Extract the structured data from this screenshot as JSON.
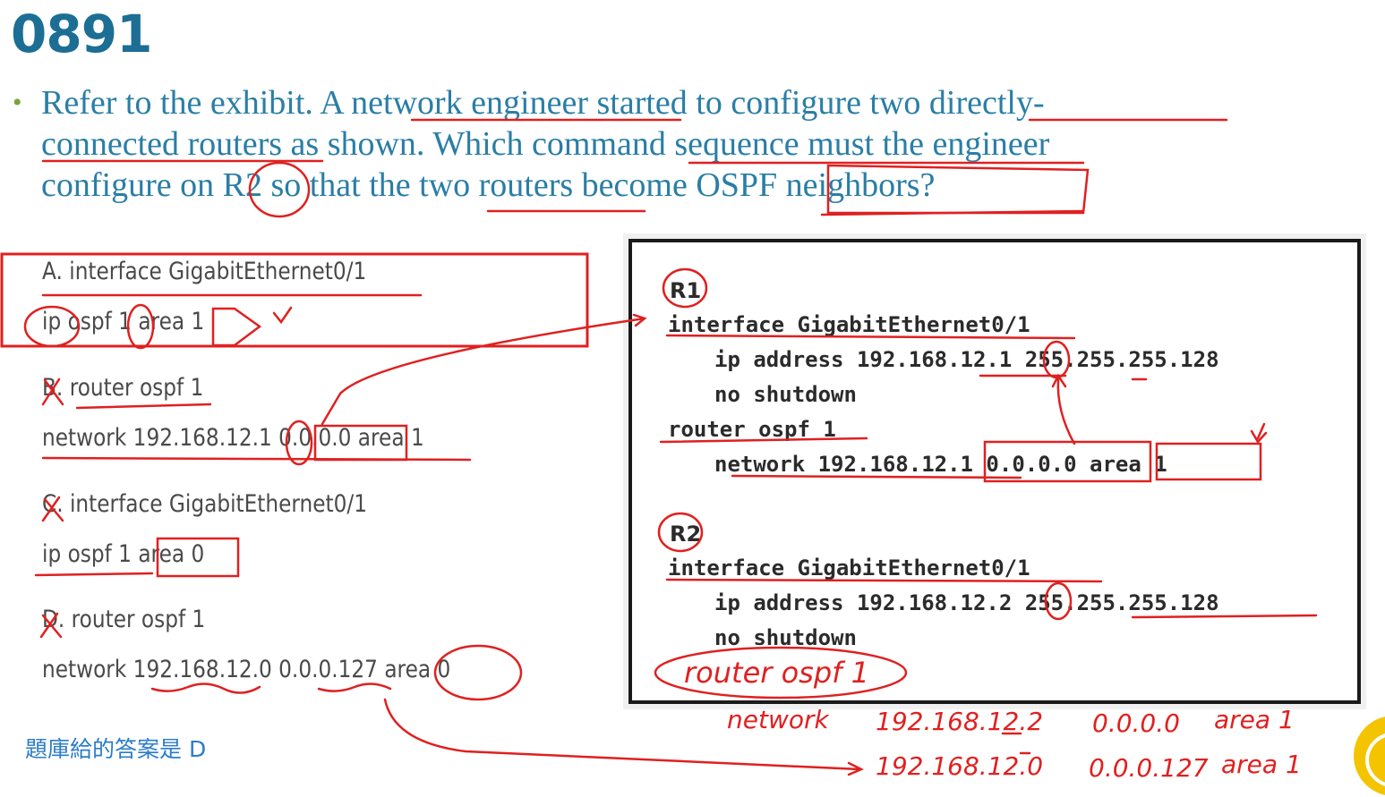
{
  "question": {
    "number": "0891",
    "lines": [
      "Refer to the exhibit. A network engineer started to configure two directly-",
      "connected routers as shown. Which command sequence must the engineer",
      "configure on R2 so that the two routers become OSPF neighbors?"
    ]
  },
  "options": [
    {
      "line1": "A. interface GigabitEthernet0/1",
      "line2": "ip ospf 1 area 1"
    },
    {
      "line1": "B. router ospf 1",
      "line2": "network 192.168.12.1 0.0.0.0 area 1"
    },
    {
      "line1": "C. interface GigabitEthernet0/1",
      "line2": "ip ospf 1 area 0"
    },
    {
      "line1": "D. router ospf 1",
      "line2": "network 192.168.12.0 0.0.0.127 area 0"
    }
  ],
  "answer_note": "題庫給的答案是 D",
  "exhibit": {
    "r1_label": "R1",
    "r1_lines": [
      "interface GigabitEthernet0/1",
      "ip address 192.168.12.1 255.255.255.128",
      "no shutdown",
      "router ospf 1",
      "network 192.168.12.1 0.0.0.0 area 1"
    ],
    "r2_label": "R2",
    "r2_lines": [
      "interface GigabitEthernet0/1",
      "ip address 192.168.12.2 255.255.255.128",
      "no shutdown"
    ]
  },
  "handwriting": {
    "r2_router": "router ospf 1",
    "net1": {
      "word": "network",
      "ip": "192.168.12.2",
      "wildcard": "0.0.0.0",
      "area": "area 1"
    },
    "net2": {
      "ip": "192.168.12.0",
      "wildcard": "0.0.0.127",
      "area": "area 1"
    }
  },
  "colors": {
    "question_text": "#2a7ea6",
    "number": "#1c6e94",
    "annotation": "#e02020",
    "note": "#2b7cc9"
  }
}
